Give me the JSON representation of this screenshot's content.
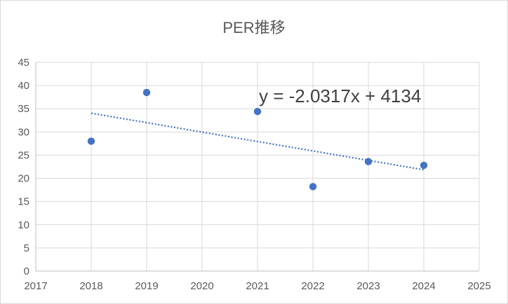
{
  "chart_data": {
    "type": "scatter",
    "title": "PER推移",
    "xlabel": "",
    "ylabel": "",
    "xlim": [
      2017,
      2025
    ],
    "ylim": [
      0,
      45
    ],
    "xticks": [
      "2017",
      "2018",
      "2019",
      "2020",
      "2021",
      "2022",
      "2023",
      "2024",
      "2025"
    ],
    "yticks": [
      "0",
      "5",
      "10",
      "15",
      "20",
      "25",
      "30",
      "35",
      "40",
      "45"
    ],
    "grid": true,
    "legend": "none",
    "series": [
      {
        "color": "#4472c4",
        "points": [
          {
            "x": 2018,
            "y": 28.0
          },
          {
            "x": 2019,
            "y": 38.5
          },
          {
            "x": 2021,
            "y": 34.4
          },
          {
            "x": 2022,
            "y": 18.2
          },
          {
            "x": 2023,
            "y": 23.6
          },
          {
            "x": 2024,
            "y": 22.8
          }
        ]
      }
    ],
    "trendline": {
      "type": "linear",
      "x_range": [
        2018,
        2024
      ],
      "slope": -2.0317,
      "intercept": 4134,
      "equation_label": "y = -2.0317x + 4134",
      "color": "#4472c4",
      "style": "dotted"
    }
  }
}
